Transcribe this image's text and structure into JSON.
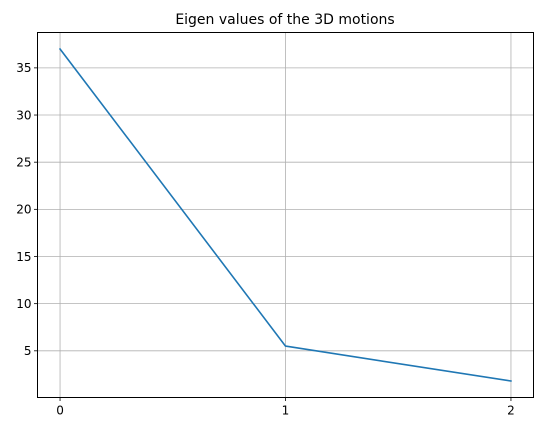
{
  "chart_data": {
    "type": "line",
    "title": "Eigen values of the 3D motions",
    "xlabel": "",
    "ylabel": "",
    "x": [
      0,
      1,
      2
    ],
    "series": [
      {
        "values": [
          37.0,
          5.5,
          1.8
        ],
        "color": "#1f77b4"
      }
    ],
    "xlim": [
      -0.1,
      2.1
    ],
    "ylim": [
      0.05,
      38.75
    ],
    "xticks": [
      0,
      1,
      2
    ],
    "yticks": [
      5,
      10,
      15,
      20,
      25,
      30,
      35
    ],
    "grid": true,
    "legend": "none"
  },
  "colors": {
    "line": "#1f77b4",
    "grid": "#b0b0b0",
    "axes": "#000000",
    "background": "#ffffff"
  }
}
